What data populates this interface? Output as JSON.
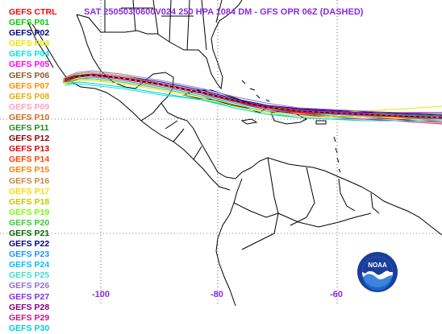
{
  "title": "SAT 250503/0600V024  250 HPA 1084 DM - GFS OPR 06Z (DASHED)",
  "legend": [
    {
      "label": "GEFS CTRL",
      "color": "#ff0000"
    },
    {
      "label": "GEFS P01",
      "color": "#00cc00"
    },
    {
      "label": "GEFS P02",
      "color": "#000080"
    },
    {
      "label": "GEFS P03",
      "color": "#e6e600"
    },
    {
      "label": "GEFS P04",
      "color": "#00e5e5"
    },
    {
      "label": "GEFS P05",
      "color": "#ff00ff"
    },
    {
      "label": "GEFS P06",
      "color": "#8b5a2b"
    },
    {
      "label": "GEFS P07",
      "color": "#ff8c00"
    },
    {
      "label": "GEFS P08",
      "color": "#e0b000"
    },
    {
      "label": "GEFS P09",
      "color": "#ffa0c0"
    },
    {
      "label": "GEFS P10",
      "color": "#d2691e"
    },
    {
      "label": "GEFS P11",
      "color": "#228b22"
    },
    {
      "label": "GEFS P12",
      "color": "#8b0000"
    },
    {
      "label": "GEFS P13",
      "color": "#e00000"
    },
    {
      "label": "GEFS P14",
      "color": "#ff4500"
    },
    {
      "label": "GEFS P15",
      "color": "#ff7f00"
    },
    {
      "label": "GEFS P16",
      "color": "#cd853f"
    },
    {
      "label": "GEFS P17",
      "color": "#ffd700"
    },
    {
      "label": "GEFS P18",
      "color": "#c8c800"
    },
    {
      "label": "GEFS P19",
      "color": "#7cfc00"
    },
    {
      "label": "GEFS P20",
      "color": "#32cd32"
    },
    {
      "label": "GEFS P21",
      "color": "#006400"
    },
    {
      "label": "GEFS P22",
      "color": "#00008b"
    },
    {
      "label": "GEFS P23",
      "color": "#1e90ff"
    },
    {
      "label": "GEFS P24",
      "color": "#00bfff"
    },
    {
      "label": "GEFS P25",
      "color": "#40e0d0"
    },
    {
      "label": "GEFS P26",
      "color": "#9370db"
    },
    {
      "label": "GEFS P27",
      "color": "#8a2be2"
    },
    {
      "label": "GEFS P28",
      "color": "#800080"
    },
    {
      "label": "GEFS P29",
      "color": "#c71585"
    },
    {
      "label": "GEFS P30",
      "color": "#00ced1"
    }
  ],
  "longitude_labels": [
    "-100",
    "-80",
    "-60"
  ],
  "logo_text": "NOAA",
  "colors": {
    "title": "#8a2be2",
    "coast": "#000000",
    "grid": "#000000"
  }
}
